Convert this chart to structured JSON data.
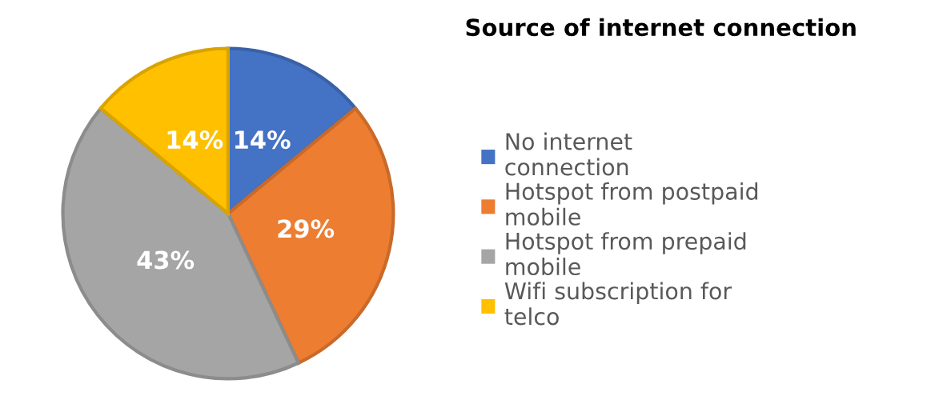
{
  "chart_data": {
    "type": "pie",
    "title": "Source of internet connection",
    "categories": [
      "No internet connection",
      "Hotspot from postpaid mobile",
      "Hotspot from prepaid mobile",
      "Wifi subscription for telco"
    ],
    "values": [
      14,
      29,
      43,
      14
    ],
    "colors": [
      "#4472c4",
      "#ed7d31",
      "#a5a5a5",
      "#ffc000"
    ],
    "value_labels": [
      "14%",
      "29%",
      "43%",
      "14%"
    ],
    "legend": "right"
  }
}
